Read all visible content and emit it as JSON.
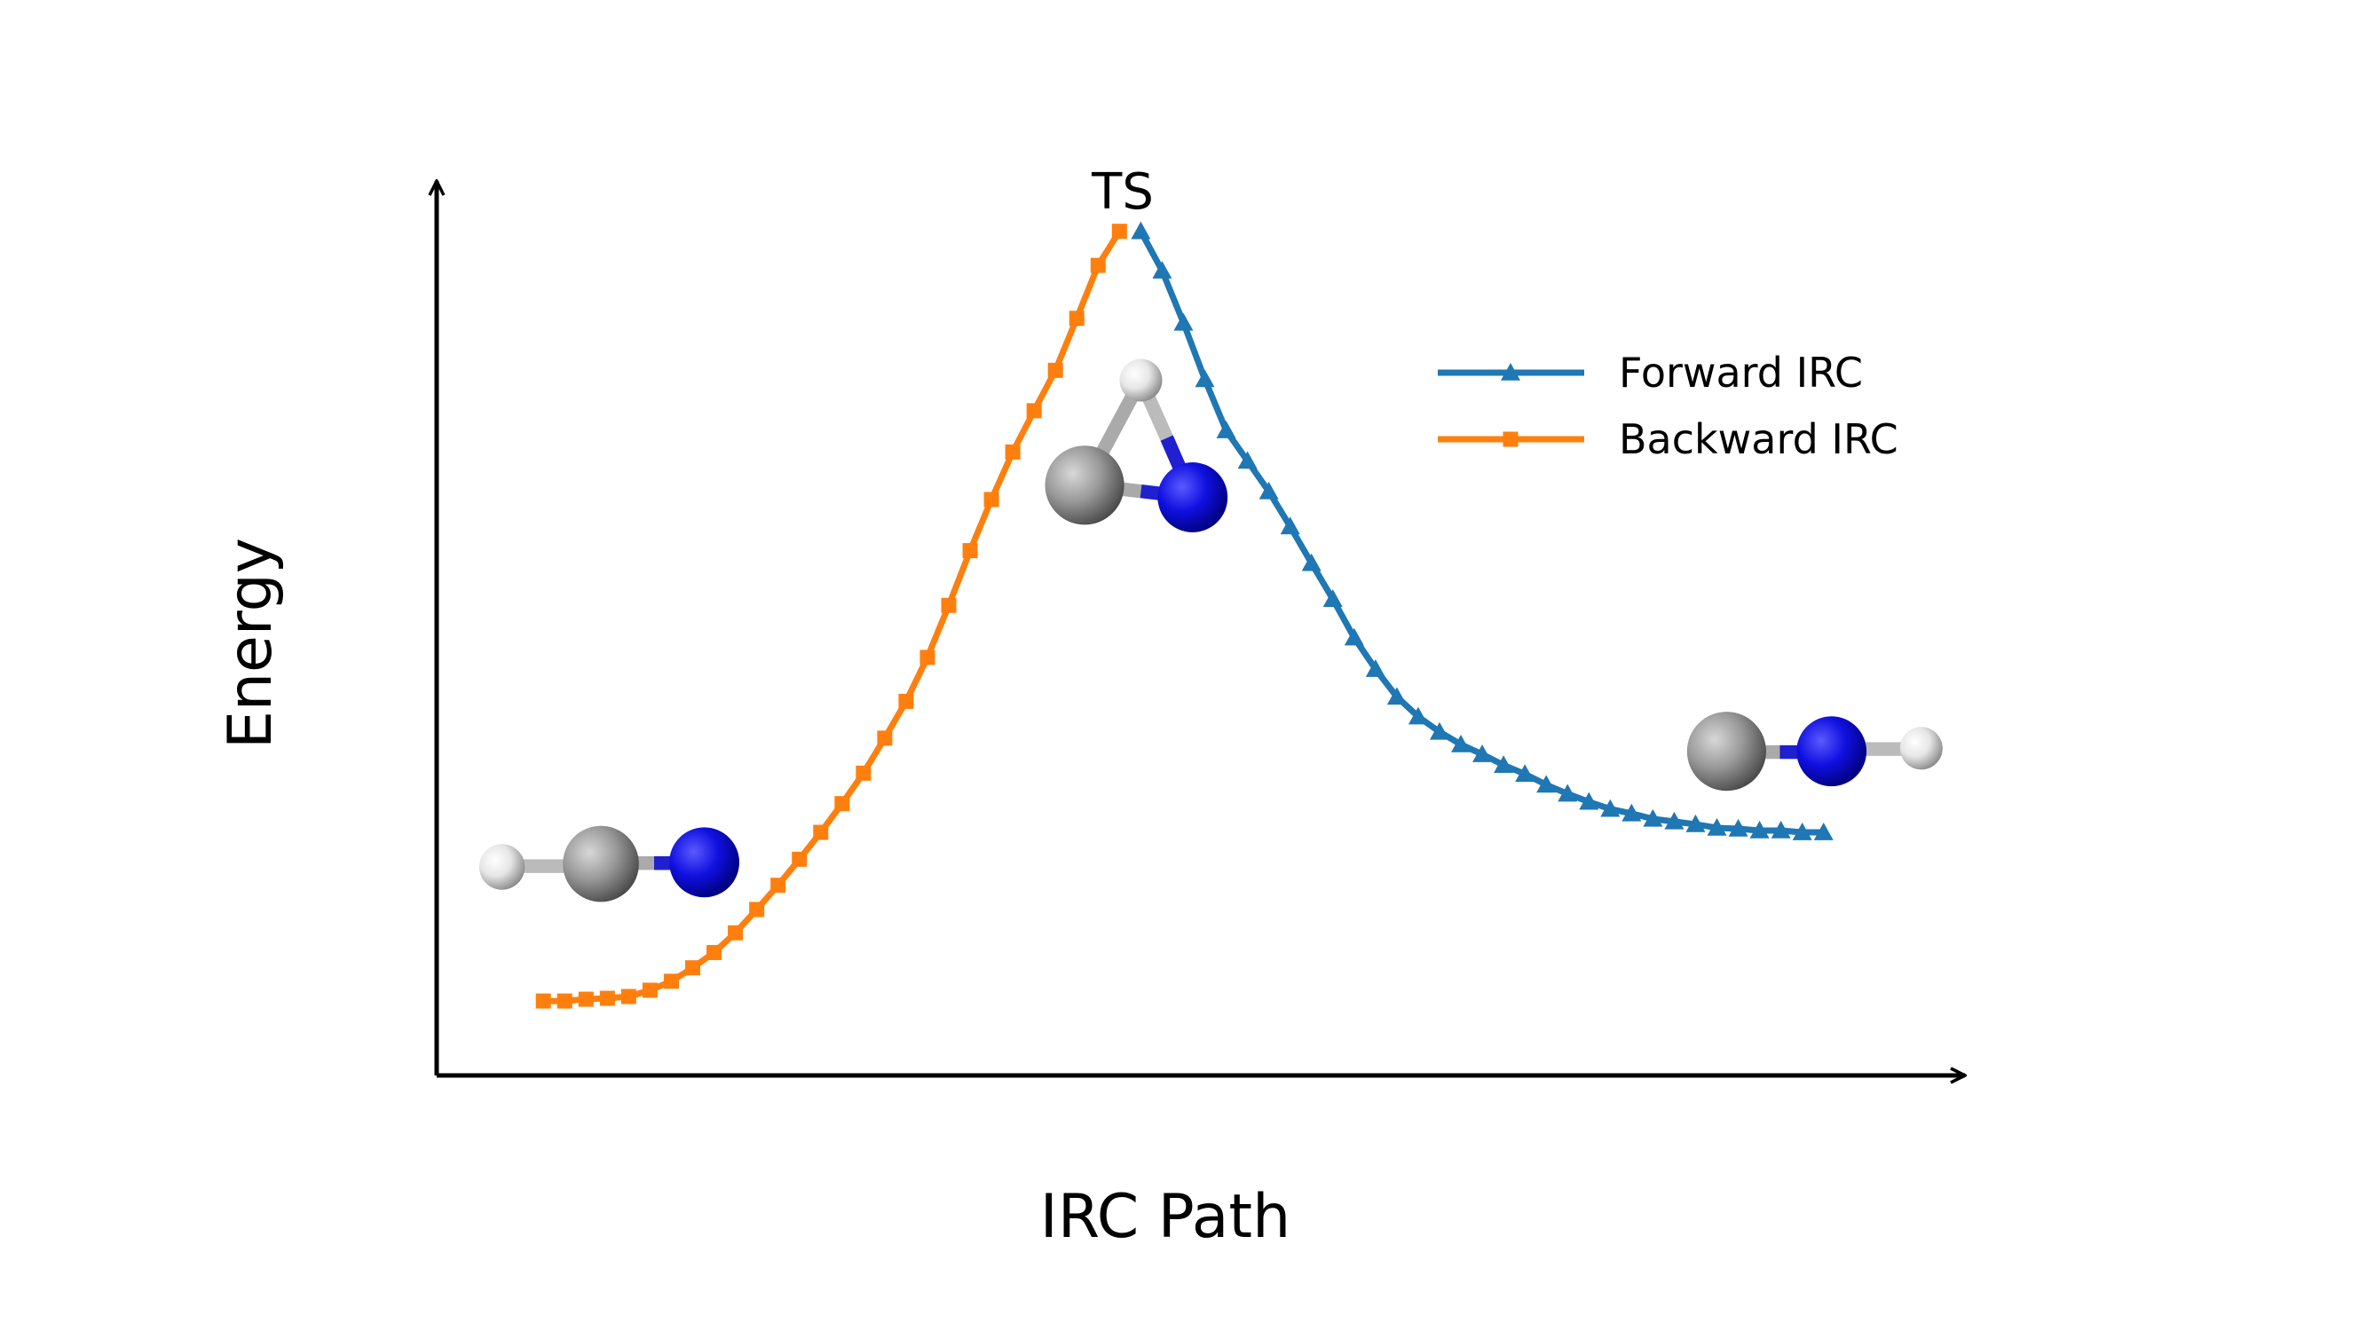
{
  "chart_data": {
    "type": "line",
    "xlabel": "IRC Path",
    "ylabel": "Energy",
    "annotation": "TS",
    "xlim": [
      -32,
      39.5
    ],
    "ylim": [
      0,
      100
    ],
    "legend": "upper right",
    "series": [
      {
        "name": "Forward IRC",
        "color": "#1f77b4",
        "marker": "triangle",
        "x": [
          1,
          2,
          3,
          4,
          5,
          6,
          7,
          8,
          9,
          10,
          11,
          12,
          13,
          14,
          15,
          16,
          17,
          18,
          19,
          20,
          21,
          22,
          23,
          24,
          25,
          26,
          27,
          28,
          29,
          30,
          31,
          32,
          33
        ],
        "values": [
          94.1,
          89.7,
          83.9,
          77.6,
          71.9,
          68.5,
          65.1,
          61.2,
          57.1,
          53.1,
          48.8,
          45.3,
          42.2,
          40.0,
          38.3,
          36.9,
          35.8,
          34.6,
          33.6,
          32.4,
          31.4,
          30.5,
          29.7,
          29.2,
          28.6,
          28.3,
          28.0,
          27.6,
          27.5,
          27.3,
          27.3,
          27.1,
          27.1
        ]
      },
      {
        "name": "Backward IRC",
        "color": "#ff7f0e",
        "marker": "square",
        "x": [
          -27,
          -26,
          -25,
          -24,
          -23,
          -22,
          -21,
          -20,
          -19,
          -18,
          -17,
          -16,
          -15,
          -14,
          -13,
          -12,
          -11,
          -10,
          -9,
          -8,
          -7,
          -6,
          -5,
          -4,
          -3,
          -2,
          -1,
          0
        ],
        "values": [
          8.3,
          8.3,
          8.5,
          8.6,
          8.8,
          9.5,
          10.5,
          12.0,
          13.7,
          15.9,
          18.5,
          21.2,
          24.1,
          27.1,
          30.3,
          33.7,
          37.6,
          41.7,
          46.6,
          52.4,
          58.5,
          64.2,
          69.5,
          74.1,
          78.6,
          84.4,
          90.3,
          94.1
        ]
      }
    ]
  }
}
